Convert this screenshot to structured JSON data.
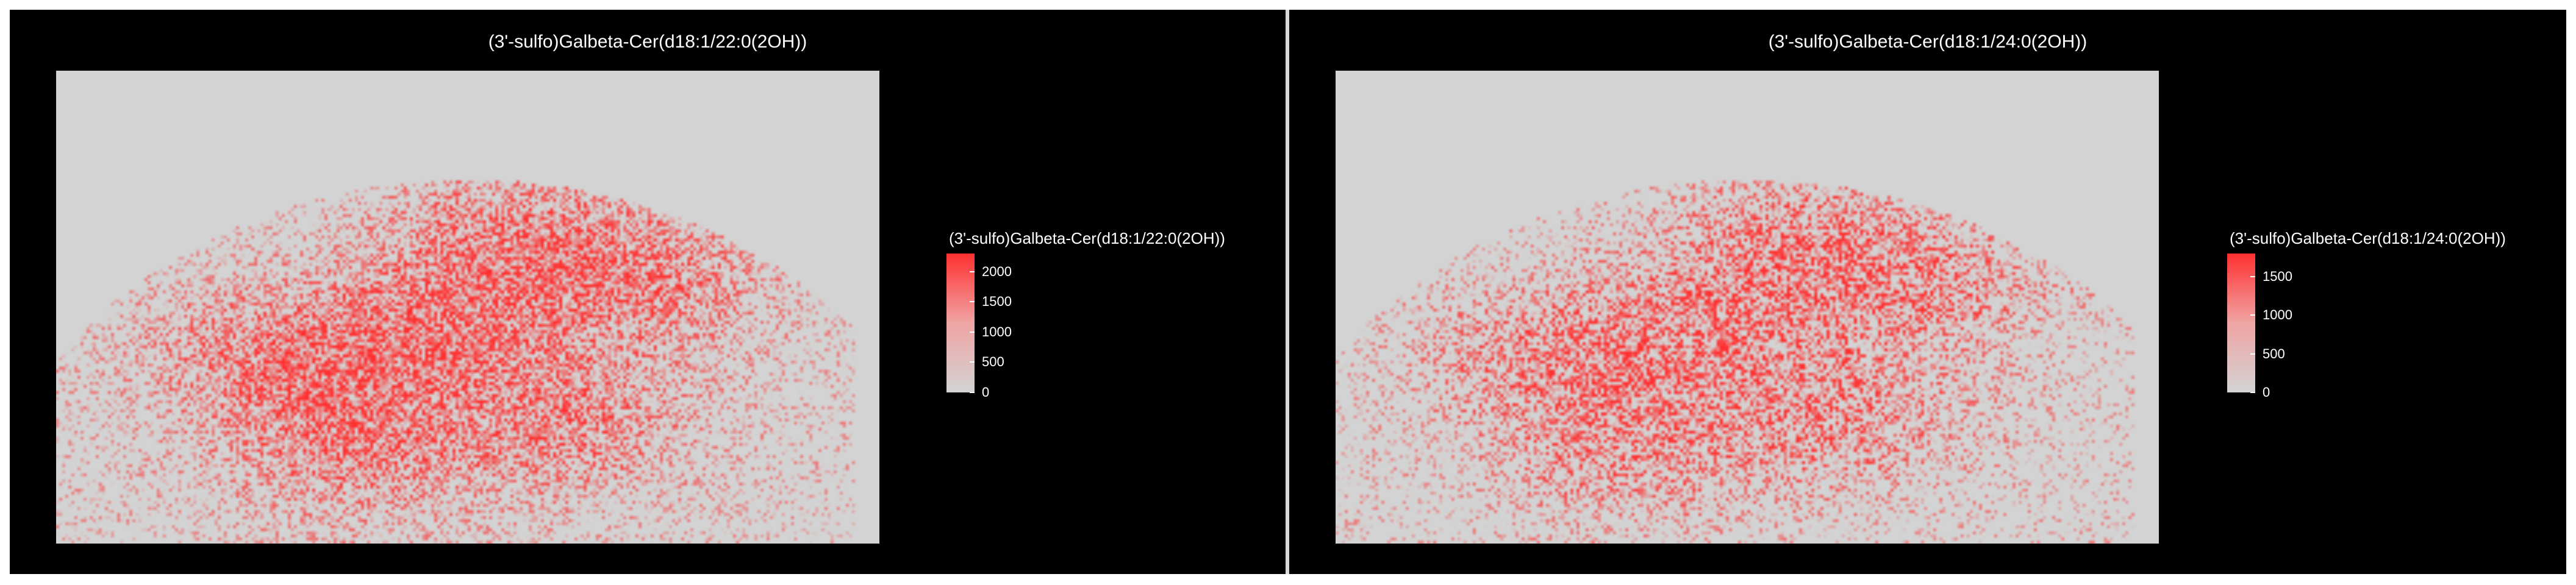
{
  "chart_data": [
    {
      "type": "heatmap",
      "title": "(3'-sulfo)Galbeta-Cer(d18:1/22:0(2OH))",
      "legend_title": "(3'-sulfo)Galbeta-Cer(d18:1/22:0(2OH))",
      "colorbar_ticks": [
        "0",
        "500",
        "1000",
        "1500",
        "2000"
      ],
      "colorbar_tick_values": [
        0,
        500,
        1000,
        1500,
        2000
      ],
      "value_range": [
        0,
        2300
      ],
      "colors": {
        "low": "#d3d3d3",
        "high": "#ff3030",
        "background": "#000000"
      },
      "grid": false,
      "legend_position": "right"
    },
    {
      "type": "heatmap",
      "title": "(3'-sulfo)Galbeta-Cer(d18:1/24:0(2OH))",
      "legend_title": "(3'-sulfo)Galbeta-Cer(d18:1/24:0(2OH))",
      "colorbar_ticks": [
        "0",
        "500",
        "1000",
        "1500"
      ],
      "colorbar_tick_values": [
        0,
        500,
        1000,
        1500
      ],
      "value_range": [
        0,
        1800
      ],
      "colors": {
        "low": "#d3d3d3",
        "high": "#ff3030",
        "background": "#000000"
      },
      "grid": false,
      "legend_position": "right"
    }
  ]
}
